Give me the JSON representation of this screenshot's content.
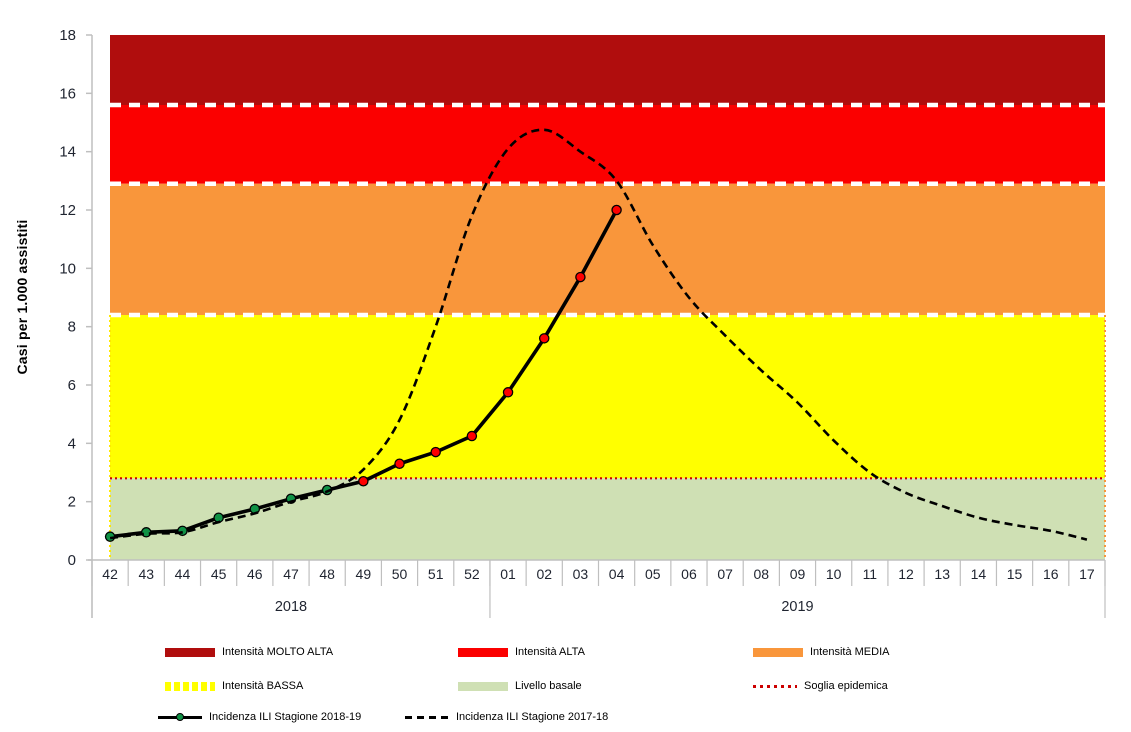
{
  "chart_data": {
    "type": "line",
    "title": "",
    "ylabel": "Casi per 1.000 assistiti",
    "ylim": [
      0,
      18
    ],
    "ytick_step": 2,
    "grid": false,
    "legend_position": "bottom",
    "x_groups": [
      {
        "year": "2018",
        "weeks": [
          "42",
          "43",
          "44",
          "45",
          "46",
          "47",
          "48",
          "49",
          "50",
          "51",
          "52"
        ]
      },
      {
        "year": "2019",
        "weeks": [
          "01",
          "02",
          "03",
          "04",
          "05",
          "06",
          "07",
          "08",
          "09",
          "10",
          "11",
          "12",
          "13",
          "14",
          "15",
          "16",
          "17"
        ]
      }
    ],
    "bands": [
      {
        "label": "Intensità MOLTO ALTA",
        "from": 15.6,
        "to": 18,
        "color": "#B00D0D"
      },
      {
        "label": "Intensità ALTA",
        "from": 12.9,
        "to": 15.6,
        "color": "#FB0000"
      },
      {
        "label": "Intensità MEDIA",
        "from": 8.4,
        "to": 12.9,
        "color": "#F9963B"
      },
      {
        "label": "Intensità BASSA",
        "from": 2.8,
        "to": 8.4,
        "color": "#FFFF00"
      },
      {
        "label": "Livello basale",
        "from": 0,
        "to": 2.8,
        "color": "#CFE0B4"
      }
    ],
    "threshold": {
      "label": "Soglia epidemica",
      "value": 2.8,
      "color": "#CC0000"
    },
    "series": [
      {
        "name": "Incidenza ILI Stagione 2018-19",
        "line": "solid",
        "values": [
          0.8,
          0.95,
          1.0,
          1.45,
          1.75,
          2.1,
          2.4,
          2.7,
          3.3,
          3.7,
          4.25,
          5.75,
          7.6,
          9.7,
          12.0
        ],
        "point_colors": [
          "#0F9145",
          "#0F9145",
          "#0F9145",
          "#0F9145",
          "#0F9145",
          "#0F9145",
          "#0F9145",
          "#FF0000",
          "#FF0000",
          "#FF0000",
          "#FF0000",
          "#FF0000",
          "#FF0000",
          "#FF0000",
          "#FF0000"
        ]
      },
      {
        "name": "Incidenza ILI Stagione 2017-18",
        "line": "dashed",
        "values": [
          0.75,
          0.9,
          0.95,
          1.3,
          1.6,
          2.0,
          2.35,
          3.1,
          4.8,
          8.0,
          11.8,
          14.1,
          14.75,
          14.0,
          13.0,
          10.8,
          9.0,
          7.7,
          6.5,
          5.4,
          4.1,
          3.0,
          2.3,
          1.85,
          1.45,
          1.2,
          1.0,
          0.7
        ]
      }
    ]
  },
  "legend": {
    "entries": [
      {
        "kind": "band",
        "label": "Intensità MOLTO ALTA",
        "color": "#B00D0D"
      },
      {
        "kind": "band",
        "label": "Intensità ALTA",
        "color": "#FB0000"
      },
      {
        "kind": "band",
        "label": "Intensità MEDIA",
        "color": "#F9963B"
      },
      {
        "kind": "band-dotted",
        "label": "Intensità BASSA",
        "color": "#FFFF00"
      },
      {
        "kind": "band",
        "label": "Livello basale",
        "color": "#CFE0B4"
      },
      {
        "kind": "threshold",
        "label": "Soglia epidemica",
        "color": "#CC0000"
      },
      {
        "kind": "line-marker",
        "label": "Incidenza ILI Stagione 2018-19",
        "color": "#000000",
        "marker_color": "#0F9145"
      },
      {
        "kind": "dashed-line",
        "label": "Incidenza ILI Stagione 2017-18",
        "color": "#000000"
      }
    ]
  },
  "colors": {
    "axis": "#BFBFBF",
    "tick_text": "#1F2430",
    "band_boundary": "#FFFFFF",
    "band_edge_left": "#FFE800",
    "band_edge_right": "#F9963B"
  }
}
